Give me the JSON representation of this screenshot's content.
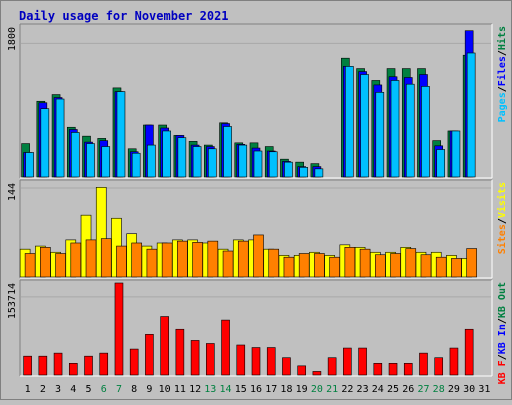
{
  "chart_data": [
    {
      "type": "bar",
      "title": "Daily usage for November 2021",
      "panel": "top",
      "ymax_label": "1800",
      "ylim": [
        0,
        2020
      ],
      "categories": [
        "1",
        "2",
        "3",
        "4",
        "5",
        "6",
        "7",
        "8",
        "9",
        "10",
        "11",
        "12",
        "13",
        "14",
        "15",
        "16",
        "17",
        "18",
        "19",
        "20",
        "21",
        "22",
        "23",
        "24",
        "25",
        "26",
        "27",
        "28",
        "29",
        "30",
        "31"
      ],
      "weekend_days": [
        "6",
        "7",
        "13",
        "14",
        "20",
        "21",
        "27",
        "28"
      ],
      "axis_legend": [
        {
          "text": "Pages",
          "color": "#00c0ff"
        },
        {
          "text": "/",
          "color": "#000000"
        },
        {
          "text": "Files",
          "color": "#0000ff"
        },
        {
          "text": "/",
          "color": "#000000"
        },
        {
          "text": "Hits",
          "color": "#008040"
        }
      ],
      "series": [
        {
          "key": "hits",
          "color": "#008040",
          "values": [
            450,
            1020,
            1110,
            670,
            550,
            520,
            1200,
            380,
            700,
            700,
            560,
            480,
            430,
            730,
            460,
            460,
            410,
            240,
            200,
            180,
            0,
            1600,
            1460,
            1300,
            1460,
            1460,
            1460,
            490,
            620,
            1640,
            0
          ]
        },
        {
          "key": "files",
          "color": "#0000ff",
          "values": [
            330,
            1000,
            1070,
            640,
            470,
            490,
            1150,
            340,
            700,
            660,
            560,
            430,
            410,
            720,
            440,
            390,
            350,
            210,
            140,
            140,
            0,
            1490,
            1420,
            1240,
            1350,
            1340,
            1380,
            420,
            620,
            1970,
            0
          ]
        },
        {
          "key": "pages",
          "color": "#00c0ff",
          "values": [
            330,
            920,
            1050,
            600,
            450,
            410,
            1150,
            320,
            430,
            620,
            530,
            410,
            380,
            680,
            430,
            350,
            340,
            200,
            130,
            110,
            0,
            1490,
            1380,
            1140,
            1300,
            1250,
            1220,
            370,
            620,
            1670,
            0
          ]
        }
      ]
    },
    {
      "type": "bar",
      "panel": "middle",
      "ymax_label": "144",
      "ylim": [
        0,
        152
      ],
      "axis_legend": [
        {
          "text": "Sites",
          "color": "#ff8000"
        },
        {
          "text": "/",
          "color": "#000000"
        },
        {
          "text": "Visits",
          "color": "#ffff00"
        }
      ],
      "series": [
        {
          "key": "visits",
          "color": "#ffff00",
          "values": [
            45,
            50,
            40,
            60,
            100,
            145,
            95,
            70,
            50,
            55,
            60,
            60,
            55,
            45,
            60,
            60,
            45,
            35,
            35,
            40,
            35,
            52,
            48,
            40,
            40,
            48,
            40,
            40,
            35,
            30,
            0
          ]
        },
        {
          "key": "sites",
          "color": "#ff8000",
          "values": [
            38,
            48,
            38,
            55,
            60,
            62,
            50,
            55,
            45,
            55,
            58,
            56,
            58,
            42,
            58,
            68,
            45,
            32,
            38,
            38,
            32,
            48,
            45,
            36,
            38,
            46,
            36,
            32,
            30,
            46,
            0
          ]
        }
      ]
    },
    {
      "type": "bar",
      "panel": "bottom",
      "ymax_label": "153714",
      "ylim": [
        0,
        181000
      ],
      "axis_legend": [
        {
          "text": "KB F",
          "color": "#ff0000"
        },
        {
          "text": "/",
          "color": "#000000"
        },
        {
          "text": "KB In",
          "color": "#0000ff"
        },
        {
          "text": "/",
          "color": "#000000"
        },
        {
          "text": "KB Out",
          "color": "#008040"
        }
      ],
      "series": [
        {
          "key": "kbf",
          "color": "#ff0000",
          "values": [
            37000,
            37000,
            43000,
            23000,
            37000,
            43000,
            181000,
            51000,
            80000,
            115000,
            90000,
            68000,
            62000,
            108000,
            59000,
            54000,
            54000,
            34000,
            18000,
            7000,
            34000,
            53000,
            53000,
            23000,
            23000,
            23000,
            43000,
            34000,
            53000,
            90000,
            0
          ]
        }
      ]
    }
  ]
}
